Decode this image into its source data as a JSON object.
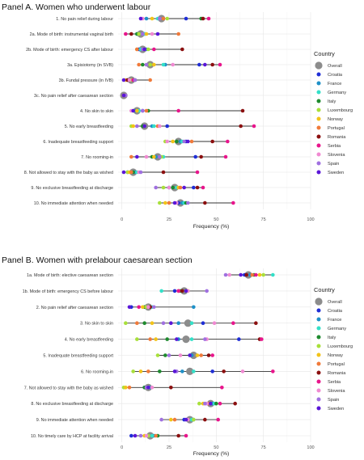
{
  "colors": {
    "Overall": "#8c8c8c",
    "Croatia": "#1f2ed6",
    "France": "#1e90c8",
    "Germany": "#33e0c8",
    "Italy": "#1e8a2e",
    "Luxembourg": "#a8e03a",
    "Norway": "#f2c318",
    "Portugal": "#f07a3a",
    "Romania": "#8b0f0f",
    "Serbia": "#e8158c",
    "Slovenia": "#f08ad2",
    "Spain": "#a070e0",
    "Sweden": "#5a16d8"
  },
  "legend": {
    "title": "Country",
    "items": [
      "Overall",
      "Croatia",
      "France",
      "Germany",
      "Italy",
      "Luxembourg",
      "Norway",
      "Portugal",
      "Romania",
      "Serbia",
      "Slovenia",
      "Spain",
      "Sweden"
    ]
  },
  "chart_data": [
    {
      "type": "scatter",
      "title": "Panel A. Women who underwent labour",
      "xlabel": "Frequency (%)",
      "xlim": [
        -2,
        100
      ],
      "xticks": [
        0,
        25,
        50,
        75,
        100
      ],
      "grid": true,
      "legend_position": "right",
      "categories": [
        "1. No pain relief during labour",
        "2a. Mode of birth: instrumental vaginal birth",
        "2b. Mode of birth: emergency CS after labour",
        "3a. Episiotomy (in SVB)",
        "3b. Fundal pressure (in IVB)",
        "3c. No pain relief after caesarean section",
        "4. No skin to skin",
        "5. No early breastfeeding",
        "6. Inadequate breastfeeding support",
        "7. No rooming-in",
        "8. Not allowed to stay with the baby as wished",
        "9. No exclusive breastfeeding at discharge",
        "10. No immediate attention when needed"
      ],
      "overall": [
        21,
        10,
        11,
        15,
        5,
        1,
        8,
        12,
        30,
        19,
        6,
        28,
        31
      ],
      "series": [
        {
          "name": "Croatia",
          "values": [
            34,
            12,
            9,
            41,
            4,
            1,
            11,
            24,
            34,
            39,
            3,
            38,
            30
          ]
        },
        {
          "name": "France",
          "values": [
            13,
            8,
            13,
            23,
            3,
            1,
            7,
            16,
            31,
            18,
            7,
            25,
            32
          ]
        },
        {
          "name": "Germany",
          "values": [
            19,
            12,
            10,
            22,
            6,
            2,
            9,
            17,
            32,
            22,
            8,
            29,
            33
          ]
        },
        {
          "name": "Italy",
          "values": [
            42,
            8,
            12,
            11,
            7,
            2,
            14,
            11,
            29,
            16,
            6,
            27,
            34
          ]
        },
        {
          "name": "Luxembourg",
          "values": [
            24,
            9,
            14,
            15,
            5,
            1,
            6,
            5,
            23,
            21,
            3,
            22,
            20
          ]
        },
        {
          "name": "Norway",
          "values": [
            16,
            13,
            8,
            17,
            2,
            1,
            8,
            6,
            27,
            17,
            4,
            30,
            23
          ]
        },
        {
          "name": "Portugal",
          "values": [
            22,
            30,
            8,
            9,
            15,
            1,
            13,
            19,
            37,
            5,
            5,
            31,
            25
          ]
        },
        {
          "name": "Romania",
          "values": [
            43,
            5,
            32,
            48,
            3,
            1,
            64,
            63,
            48,
            42,
            22,
            40,
            44
          ]
        },
        {
          "name": "Serbia",
          "values": [
            46,
            2,
            17,
            52,
            6,
            2,
            30,
            70,
            56,
            55,
            40,
            43,
            59
          ]
        },
        {
          "name": "Slovenia",
          "values": [
            11,
            16,
            12,
            27,
            4,
            1,
            5,
            20,
            24,
            13,
            9,
            25,
            29
          ]
        },
        {
          "name": "Spain",
          "values": [
            20,
            11,
            11,
            13,
            7,
            2,
            11,
            8,
            33,
            20,
            10,
            18,
            35
          ]
        },
        {
          "name": "Sweden",
          "values": [
            10,
            19,
            12,
            44,
            1,
            1,
            6,
            12,
            35,
            8,
            1,
            33,
            28
          ]
        }
      ]
    },
    {
      "type": "scatter",
      "title": "Panel B. Women with prelabour caesarean section",
      "xlabel": "Frequency (%)",
      "xlim": [
        -2,
        100
      ],
      "xticks": [
        0,
        25,
        50,
        75,
        100
      ],
      "grid": true,
      "legend_position": "right",
      "categories": [
        "1a. Mode of birth: elective caesarean section",
        "1b. Mode of birth: emergency CS before labour",
        "2. No pain relief after caesarean section",
        "3. No skin to skin",
        "4. No early breastfeeding",
        "5. Inadequate breastfeeding support",
        "6. No rooming-in",
        "7. Not allowed to stay with the baby as wished",
        "8. No exclusive breastfeeding at discharge",
        "9. No immediate attention when needed",
        "10. No timely care by HCP at facility arrival"
      ],
      "overall": [
        67,
        33,
        14,
        35,
        34,
        38,
        36,
        14,
        47,
        36,
        15
      ],
      "series": [
        {
          "name": "Croatia",
          "values": [
            65,
            28,
            5,
            43,
            62,
            37,
            48,
            12,
            46,
            33,
            5
          ]
        },
        {
          "name": "France",
          "values": [
            68,
            34,
            38,
            30,
            30,
            37,
            32,
            15,
            48,
            38,
            17
          ]
        },
        {
          "name": "Germany",
          "values": [
            80,
            21,
            16,
            37,
            37,
            36,
            38,
            14,
            49,
            37,
            16
          ]
        },
        {
          "name": "Italy",
          "values": [
            70,
            31,
            12,
            12,
            24,
            23,
            20,
            12,
            50,
            35,
            19
          ]
        },
        {
          "name": "Luxembourg",
          "values": [
            75,
            34,
            13,
            2,
            8,
            19,
            6,
            1,
            41,
            38,
            14
          ]
        },
        {
          "name": "Norway",
          "values": [
            73,
            35,
            11,
            16,
            18,
            40,
            10,
            2,
            43,
            26,
            12
          ]
        },
        {
          "name": "Portugal",
          "values": [
            69,
            30,
            14,
            8,
            15,
            42,
            14,
            4,
            46,
            28,
            18
          ]
        },
        {
          "name": "Romania",
          "values": [
            66,
            32,
            15,
            71,
            73,
            46,
            54,
            26,
            60,
            44,
            30
          ]
        },
        {
          "name": "Serbia",
          "values": [
            71,
            30,
            9,
            59,
            74,
            48,
            80,
            53,
            52,
            51,
            34
          ]
        },
        {
          "name": "Slovenia",
          "values": [
            57,
            35,
            14,
            49,
            45,
            31,
            64,
            16,
            45,
            35,
            13
          ]
        },
        {
          "name": "Spain",
          "values": [
            55,
            45,
            17,
            22,
            44,
            25,
            29,
            13,
            44,
            21,
            10
          ]
        },
        {
          "name": "Sweden",
          "values": [
            63,
            34,
            4,
            26,
            29,
            36,
            28,
            14,
            47,
            34,
            7
          ]
        }
      ]
    }
  ]
}
